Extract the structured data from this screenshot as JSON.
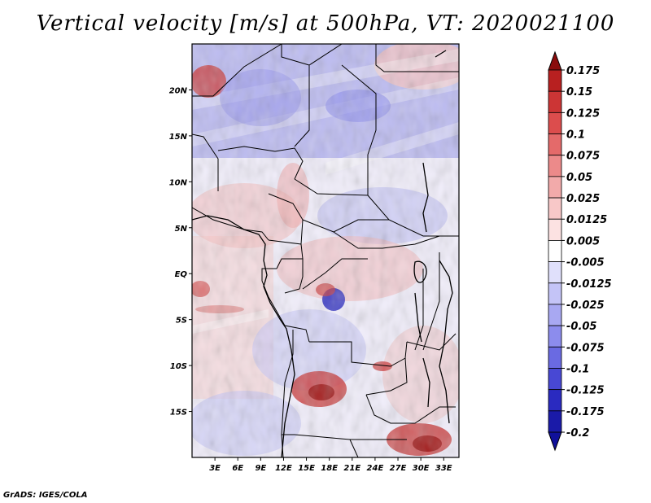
{
  "title": "Vertical velocity [m/s] at 500hPa, VT: 2020021100",
  "credit": "GrADS: IGES/COLA",
  "map": {
    "lon_range": [
      0,
      35
    ],
    "lat_range": [
      -20,
      25
    ],
    "lat_ticks": [
      {
        "value": 20,
        "label": "20N"
      },
      {
        "value": 15,
        "label": "15N"
      },
      {
        "value": 10,
        "label": "10N"
      },
      {
        "value": 5,
        "label": "5N"
      },
      {
        "value": 0,
        "label": "EQ"
      },
      {
        "value": -5,
        "label": "5S"
      },
      {
        "value": -10,
        "label": "10S"
      },
      {
        "value": -15,
        "label": "15S"
      }
    ],
    "lon_ticks": [
      {
        "value": 3,
        "label": "3E"
      },
      {
        "value": 6,
        "label": "6E"
      },
      {
        "value": 9,
        "label": "9E"
      },
      {
        "value": 12,
        "label": "12E"
      },
      {
        "value": 15,
        "label": "15E"
      },
      {
        "value": 18,
        "label": "18E"
      },
      {
        "value": 21,
        "label": "21E"
      },
      {
        "value": 24,
        "label": "24E"
      },
      {
        "value": 27,
        "label": "27E"
      },
      {
        "value": 30,
        "label": "30E"
      },
      {
        "value": 33,
        "label": "33E"
      }
    ]
  },
  "colorbar": {
    "levels": [
      {
        "label": "0.175",
        "color": "#a01010"
      },
      {
        "label": "0.15",
        "color": "#b82020"
      },
      {
        "label": "0.125",
        "color": "#cc3535"
      },
      {
        "label": "0.1",
        "color": "#dc4d4d"
      },
      {
        "label": "0.075",
        "color": "#e46a6a"
      },
      {
        "label": "0.05",
        "color": "#ec8a8a"
      },
      {
        "label": "0.025",
        "color": "#f2aaaa"
      },
      {
        "label": "0.0125",
        "color": "#f8c8c8"
      },
      {
        "label": "0.005",
        "color": "#fce2e2"
      },
      {
        "label": "-0.005",
        "color": "#ffffff"
      },
      {
        "label": "-0.0125",
        "color": "#e0e0fb"
      },
      {
        "label": "-0.025",
        "color": "#c4c4f7"
      },
      {
        "label": "-0.05",
        "color": "#a8a8f2"
      },
      {
        "label": "-0.075",
        "color": "#8c8ced"
      },
      {
        "label": "-0.1",
        "color": "#6a6ae2"
      },
      {
        "label": "-0.125",
        "color": "#4848d4"
      },
      {
        "label": "-0.175",
        "color": "#2a2ac0"
      },
      {
        "label": "-0.2",
        "color": "#1a1aa8"
      }
    ],
    "top_color": "#8a0c0c",
    "bottom_color": "#10109a"
  },
  "field": {
    "units": "m/s",
    "level": "500hPa",
    "valid_time": "2020021100",
    "strong_ascent_regions": [
      {
        "lon": 17.5,
        "lat": -14.5
      },
      {
        "lon": 28.5,
        "lat": -17.5
      },
      {
        "lon": 2.0,
        "lat": 21.0
      },
      {
        "lon": 18.5,
        "lat": -1.5
      }
    ],
    "strong_descent_regions": [
      {
        "lon": 19.0,
        "lat": -2.5
      },
      {
        "lon": 20.0,
        "lat": 18.0
      }
    ]
  }
}
